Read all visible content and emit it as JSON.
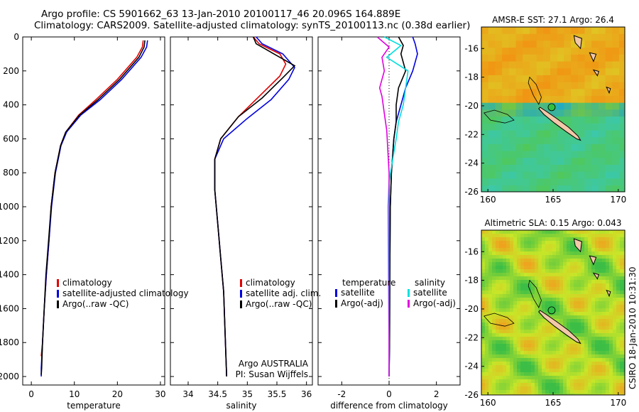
{
  "header": {
    "line1": "Argo profile: CS 5901662_63 13-Jan-2010 20100117_46 20.096S 164.889E",
    "line2": "Climatology: CARS2009. Satellite-adjusted climatology: synTS_20100113.nc (0.38d earlier)"
  },
  "side_label": "CSIRO 18-Jan-2010 10:31:30",
  "colors": {
    "clim": "#e00000",
    "sat": "#0000e0",
    "argo": "#000000",
    "sat_sal": "#00e0e0",
    "argo_sal": "#e000e0"
  },
  "chart_data": [
    {
      "type": "line",
      "name": "temperature",
      "xlabel": "temperature",
      "ylabel": "",
      "xlim": [
        -2,
        31
      ],
      "ylim": [
        2050,
        0
      ],
      "xticks": [
        "0",
        "10",
        "20",
        "30"
      ],
      "xtick_values": [
        0,
        10,
        20,
        30
      ],
      "yticks": [
        "0",
        "200",
        "400",
        "600",
        "800",
        "1000",
        "1200",
        "1400",
        "1600",
        "1800",
        "2000"
      ],
      "ytick_values": [
        0,
        200,
        400,
        600,
        800,
        1000,
        1200,
        1400,
        1600,
        1800,
        2000
      ],
      "legend": [
        "climatology",
        "satellite-adjusted climatology",
        "Argo(..raw -QC)"
      ],
      "series": [
        {
          "name": "climatology",
          "color": "#e00000",
          "x": [
            26.0,
            25.8,
            24.5,
            20.0,
            15.0,
            11.0,
            8.0,
            6.8,
            5.5,
            4.6,
            4.1,
            3.5,
            3.0,
            2.6,
            2.3
          ],
          "y": [
            20,
            60,
            120,
            250,
            370,
            460,
            560,
            640,
            800,
            1000,
            1200,
            1400,
            1600,
            1800,
            1880
          ]
        },
        {
          "name": "satellite",
          "color": "#0000e0",
          "x": [
            27.0,
            26.8,
            25.5,
            21.0,
            16.0,
            11.5,
            8.2,
            6.9,
            5.6,
            4.7,
            4.1,
            3.5,
            3.0,
            2.6,
            2.3,
            2.3
          ],
          "y": [
            20,
            60,
            120,
            250,
            370,
            460,
            560,
            640,
            800,
            1000,
            1200,
            1400,
            1600,
            1800,
            1950,
            2000
          ]
        },
        {
          "name": "argo",
          "color": "#000000",
          "x": [
            26.4,
            26.2,
            25.0,
            20.5,
            15.5,
            11.2,
            8.0,
            6.8,
            5.5,
            4.6,
            4.0,
            3.4,
            3.0,
            2.6,
            2.4,
            2.3
          ],
          "y": [
            20,
            60,
            120,
            250,
            370,
            460,
            560,
            640,
            800,
            1000,
            1200,
            1400,
            1600,
            1800,
            1950,
            1990
          ]
        }
      ]
    },
    {
      "type": "line",
      "name": "salinity",
      "xlabel": "salinity",
      "xlim": [
        33.7,
        36.1
      ],
      "ylim": [
        2050,
        0
      ],
      "xticks": [
        "34",
        "34.5",
        "35",
        "35.5",
        "36"
      ],
      "xtick_values": [
        34,
        34.5,
        35,
        35.5,
        36
      ],
      "legend": [
        "climatology",
        "satellite adj. clim.",
        "Argo(..raw -QC)"
      ],
      "annotations": [
        "Argo AUSTRALIA",
        "PI: Susan Wijffels"
      ],
      "series": [
        {
          "name": "climatology",
          "color": "#e00000",
          "x": [
            35.1,
            35.2,
            35.55,
            35.65,
            35.55,
            35.2,
            34.85,
            34.55,
            34.45,
            34.45,
            34.5,
            34.55,
            34.6,
            34.63,
            34.65
          ],
          "y": [
            0,
            40,
            100,
            160,
            230,
            350,
            470,
            600,
            720,
            900,
            1100,
            1300,
            1500,
            1800,
            2000
          ]
        },
        {
          "name": "satellite",
          "color": "#0000e0",
          "x": [
            35.15,
            35.25,
            35.6,
            35.8,
            35.7,
            35.4,
            35.0,
            34.6,
            34.45,
            34.45,
            34.5,
            34.55,
            34.6,
            34.63,
            34.65
          ],
          "y": [
            0,
            40,
            100,
            180,
            250,
            370,
            480,
            600,
            720,
            900,
            1100,
            1300,
            1500,
            1800,
            2000
          ]
        },
        {
          "name": "argo",
          "color": "#000000",
          "x": [
            35.1,
            35.15,
            35.5,
            35.8,
            35.6,
            35.25,
            34.85,
            34.55,
            34.45,
            34.45,
            34.5,
            34.55,
            34.6,
            34.63,
            34.65
          ],
          "y": [
            0,
            40,
            110,
            170,
            240,
            360,
            470,
            600,
            720,
            900,
            1100,
            1300,
            1500,
            1800,
            2000
          ]
        }
      ]
    },
    {
      "type": "line",
      "name": "difference",
      "xlabel": "difference from climatology",
      "xlim": [
        -3,
        3
      ],
      "ylim": [
        2050,
        0
      ],
      "xticks": [
        "-2",
        "0",
        "2"
      ],
      "xtick_values": [
        -2,
        0,
        2
      ],
      "legend_titles": [
        "temperature",
        "salinity"
      ],
      "legend": [
        "satellite",
        "Argo(-adj)",
        "satellite",
        "Argo(-adj)"
      ],
      "series": [
        {
          "name": "temperature satellite",
          "color": "#0000e0",
          "x": [
            1.0,
            1.1,
            1.2,
            1.0,
            0.7,
            0.5,
            0.3,
            0.2,
            0.1,
            0.05,
            0.03,
            0.02,
            0.0
          ],
          "y": [
            0,
            40,
            100,
            200,
            300,
            400,
            500,
            600,
            800,
            1000,
            1400,
            1800,
            2000
          ]
        },
        {
          "name": "temperature argo",
          "color": "#000000",
          "x": [
            0.4,
            0.6,
            0.5,
            0.7,
            0.4,
            0.3,
            0.3,
            0.2,
            0.1,
            0.05,
            0.03,
            0.02,
            0.0
          ],
          "y": [
            0,
            50,
            100,
            200,
            300,
            400,
            500,
            600,
            800,
            1000,
            1400,
            1800,
            2000
          ]
        },
        {
          "name": "salinity satellite",
          "color": "#00e0e0",
          "x": [
            -0.2,
            0.5,
            -0.1,
            0.8,
            0.7,
            0.6,
            0.4,
            0.3,
            0.0,
            -0.05,
            -0.03,
            0.0,
            0.0
          ],
          "y": [
            0,
            50,
            120,
            200,
            300,
            400,
            500,
            600,
            850,
            1000,
            1400,
            1800,
            2000
          ]
        },
        {
          "name": "salinity argo",
          "color": "#e000e0",
          "x": [
            -0.5,
            0.0,
            -0.3,
            -0.2,
            -0.4,
            -0.3,
            -0.2,
            -0.1,
            0.0,
            0.0,
            0.0,
            0.0,
            0.0
          ],
          "y": [
            0,
            60,
            120,
            200,
            300,
            350,
            450,
            550,
            800,
            1000,
            1400,
            1800,
            2000
          ]
        }
      ]
    },
    {
      "type": "heatmap",
      "name": "sst_map",
      "title": "AMSR-E SST: 27.1 Argo: 26.4",
      "xlim": [
        159.5,
        170.5
      ],
      "ylim": [
        -26,
        -14.5
      ],
      "xticks": [
        "160",
        "165",
        "170"
      ],
      "xtick_values": [
        160,
        165,
        170
      ],
      "yticks": [
        "-16",
        "-18",
        "-20",
        "-22",
        "-24",
        "-26"
      ],
      "ytick_values": [
        -16,
        -18,
        -20,
        -22,
        -24,
        -26
      ],
      "marker": {
        "lon": 164.889,
        "lat": -20.096
      }
    },
    {
      "type": "heatmap",
      "name": "sla_map",
      "title": "Altimetric SLA: 0.15 Argo: 0.043",
      "xlim": [
        159.5,
        170.5
      ],
      "ylim": [
        -26,
        -14.5
      ],
      "xticks": [
        "160",
        "165",
        "170"
      ],
      "xtick_values": [
        160,
        165,
        170
      ],
      "yticks": [
        "-16",
        "-18",
        "-20",
        "-22",
        "-24",
        "-26"
      ],
      "ytick_values": [
        -16,
        -18,
        -20,
        -22,
        -24,
        -26
      ],
      "marker": {
        "lon": 164.889,
        "lat": -20.096
      }
    }
  ]
}
